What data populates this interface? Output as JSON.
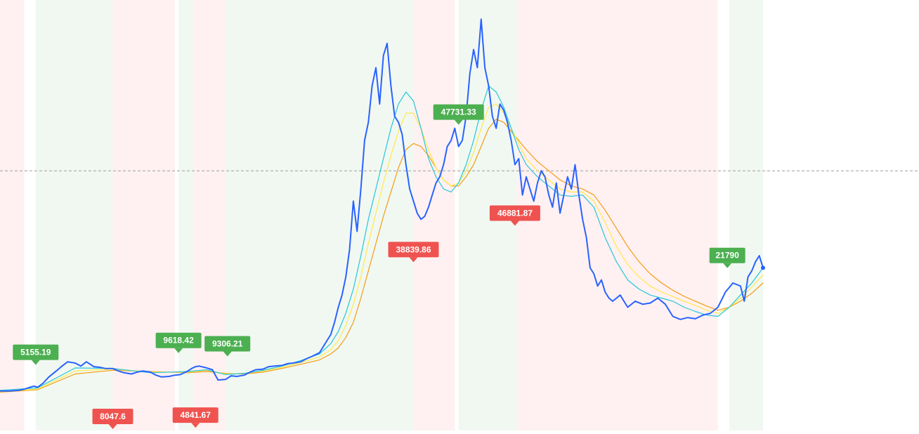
{
  "chart_data": {
    "type": "line",
    "title": "",
    "xlabel": "",
    "ylabel": "",
    "ylim": [
      2000,
      68000
    ],
    "xlim": [
      0,
      420
    ],
    "grid": false,
    "reference_line_value": 41000,
    "colors": {
      "price": "#2962ff",
      "ma_fast": "#26c6da",
      "ma_mid": "#ffe94a",
      "ma_slow": "#f39c12",
      "buy": "#4caf50",
      "sell": "#ef5350",
      "bg_buy": "#f1f8f2",
      "bg_sell": "#fff1f1",
      "reference_line": "#9e9e9e"
    },
    "regimes": [
      {
        "signal": "sell",
        "from": 0,
        "to": 13
      },
      {
        "signal": "buy",
        "from": 19,
        "to": 60
      },
      {
        "signal": "sell",
        "from": 60,
        "to": 93
      },
      {
        "signal": "buy",
        "from": 95,
        "to": 103
      },
      {
        "signal": "sell",
        "from": 103,
        "to": 120
      },
      {
        "signal": "buy",
        "from": 120,
        "to": 220
      },
      {
        "signal": "sell",
        "from": 220,
        "to": 242
      },
      {
        "signal": "buy",
        "from": 244,
        "to": 275
      },
      {
        "signal": "sell",
        "from": 275,
        "to": 382
      },
      {
        "signal": "buy",
        "from": 388,
        "to": 406
      }
    ],
    "series": [
      {
        "key": "price",
        "x": [
          0,
          5,
          10,
          13,
          16,
          18,
          20,
          23,
          26,
          30,
          33,
          36,
          40,
          43,
          46,
          50,
          53,
          56,
          60,
          63,
          66,
          70,
          73,
          76,
          80,
          83,
          86,
          90,
          93,
          96,
          100,
          102,
          104,
          106,
          110,
          113,
          116,
          120,
          123,
          126,
          130,
          133,
          136,
          140,
          143,
          146,
          150,
          153,
          156,
          160,
          163,
          166,
          170,
          172,
          174,
          176,
          178,
          180,
          182,
          184,
          186,
          188,
          190,
          192,
          194,
          196,
          198,
          200,
          202,
          204,
          206,
          208,
          210,
          212,
          214,
          216,
          218,
          220,
          222,
          224,
          226,
          228,
          230,
          232,
          234,
          236,
          238,
          240,
          242,
          244,
          246,
          248,
          250,
          252,
          254,
          256,
          258,
          260,
          262,
          264,
          266,
          268,
          270,
          272,
          274,
          276,
          278,
          280,
          282,
          284,
          286,
          288,
          290,
          292,
          294,
          296,
          298,
          300,
          302,
          304,
          306,
          308,
          310,
          312,
          314,
          316,
          318,
          320,
          322,
          324,
          326,
          328,
          330,
          334,
          338,
          342,
          346,
          350,
          354,
          358,
          362,
          366,
          370,
          374,
          378,
          382,
          386,
          390,
          394,
          396,
          398,
          400,
          402,
          404,
          406
        ],
        "y": [
          4700,
          4700,
          4800,
          5000,
          5300,
          5500,
          5300,
          6000,
          7000,
          8000,
          8800,
          9500,
          9300,
          8800,
          9500,
          8700,
          8600,
          8400,
          8400,
          8000,
          7700,
          7500,
          7800,
          8000,
          7800,
          7300,
          7000,
          7100,
          7300,
          7400,
          8000,
          8400,
          8700,
          8800,
          8500,
          8200,
          6500,
          6600,
          7200,
          7100,
          7300,
          7800,
          8200,
          8300,
          8700,
          8800,
          8900,
          9200,
          9300,
          9500,
          10000,
          10400,
          11000,
          12000,
          13000,
          14000,
          16000,
          18500,
          20500,
          23500,
          28000,
          36000,
          31000,
          38000,
          46000,
          49000,
          55000,
          58000,
          52000,
          60000,
          62000,
          55000,
          50000,
          49000,
          47000,
          42000,
          38000,
          36000,
          34000,
          33000,
          33500,
          35000,
          37000,
          39000,
          40000,
          42000,
          45000,
          46000,
          48000,
          45000,
          46000,
          50000,
          57000,
          61000,
          58000,
          66000,
          58000,
          55000,
          50000,
          48000,
          52000,
          51000,
          49000,
          46000,
          42000,
          43000,
          37000,
          40000,
          38000,
          36000,
          39000,
          41000,
          40000,
          37000,
          35000,
          39000,
          34000,
          37000,
          40000,
          38000,
          42000,
          37000,
          33000,
          30000,
          25000,
          24000,
          22000,
          23000,
          21000,
          20000,
          19500,
          20000,
          20500,
          18500,
          19500,
          19000,
          19200,
          20000,
          19000,
          17000,
          16500,
          16800,
          16600,
          17200,
          17500,
          18500,
          21000,
          22500,
          22000,
          19500,
          23500,
          24500,
          26000,
          27000,
          25000
        ]
      },
      {
        "key": "ma_fast",
        "x": [
          0,
          20,
          40,
          60,
          80,
          100,
          110,
          120,
          130,
          140,
          150,
          160,
          170,
          176,
          180,
          184,
          188,
          192,
          196,
          200,
          204,
          208,
          212,
          216,
          220,
          224,
          228,
          232,
          236,
          240,
          244,
          248,
          252,
          256,
          260,
          264,
          268,
          272,
          276,
          280,
          286,
          292,
          298,
          304,
          310,
          316,
          322,
          328,
          334,
          340,
          346,
          352,
          358,
          364,
          370,
          376,
          382,
          388,
          394,
          400,
          406
        ],
        "y": [
          4800,
          5200,
          8500,
          8400,
          7700,
          7900,
          8200,
          7400,
          7600,
          8100,
          8800,
          9700,
          10800,
          12500,
          14500,
          17500,
          21500,
          27000,
          33000,
          38000,
          43000,
          48000,
          52000,
          54000,
          52500,
          48000,
          43000,
          40000,
          38000,
          37500,
          39000,
          42000,
          46000,
          51000,
          55000,
          54000,
          51500,
          48000,
          44500,
          42000,
          40000,
          38500,
          37000,
          36800,
          37000,
          35000,
          30000,
          26000,
          23000,
          21500,
          20500,
          20000,
          19500,
          18500,
          17800,
          17200,
          17000,
          18500,
          20500,
          22500,
          25000
        ]
      },
      {
        "key": "ma_mid",
        "x": [
          0,
          20,
          40,
          60,
          80,
          100,
          110,
          120,
          130,
          140,
          150,
          160,
          170,
          176,
          180,
          184,
          188,
          192,
          196,
          200,
          204,
          208,
          212,
          216,
          220,
          224,
          228,
          232,
          236,
          240,
          244,
          248,
          252,
          256,
          260,
          264,
          268,
          272,
          276,
          280,
          286,
          292,
          298,
          304,
          310,
          316,
          322,
          328,
          334,
          340,
          346,
          352,
          358,
          364,
          370,
          376,
          382,
          388,
          394,
          400,
          406
        ],
        "y": [
          4600,
          5000,
          8000,
          8300,
          7800,
          7800,
          8100,
          7500,
          7600,
          8000,
          8600,
          9400,
          10300,
          11500,
          13000,
          15500,
          19000,
          23500,
          29000,
          34000,
          39000,
          43500,
          47500,
          50500,
          50500,
          48000,
          44500,
          41500,
          39500,
          38500,
          39000,
          41000,
          44000,
          48000,
          51500,
          52000,
          50500,
          48000,
          45500,
          43000,
          41000,
          39500,
          38000,
          37500,
          37500,
          36000,
          32500,
          28500,
          25500,
          23500,
          22000,
          21000,
          20300,
          19500,
          18800,
          18000,
          17500,
          18500,
          20000,
          21800,
          23800
        ]
      },
      {
        "key": "ma_slow",
        "x": [
          0,
          20,
          40,
          60,
          80,
          100,
          110,
          120,
          130,
          140,
          150,
          160,
          170,
          176,
          180,
          184,
          188,
          192,
          196,
          200,
          204,
          208,
          212,
          216,
          220,
          224,
          228,
          232,
          236,
          240,
          244,
          248,
          252,
          256,
          260,
          264,
          268,
          272,
          276,
          280,
          286,
          292,
          298,
          304,
          310,
          316,
          322,
          328,
          334,
          340,
          346,
          352,
          358,
          364,
          370,
          376,
          382,
          388,
          394,
          400,
          406
        ],
        "y": [
          4500,
          4900,
          7500,
          8100,
          7900,
          7700,
          7900,
          7600,
          7500,
          7800,
          8400,
          9100,
          9800,
          10800,
          11800,
          13500,
          16000,
          20000,
          24500,
          29000,
          33500,
          37500,
          41500,
          44500,
          45500,
          45000,
          43500,
          41500,
          39500,
          38500,
          38500,
          40000,
          42000,
          45000,
          48000,
          49500,
          49000,
          47500,
          46000,
          44500,
          42500,
          41000,
          39500,
          38500,
          38000,
          37000,
          34500,
          31500,
          28500,
          26000,
          24000,
          22500,
          21300,
          20300,
          19500,
          18700,
          18000,
          18500,
          19500,
          20800,
          22500
        ]
      }
    ],
    "annotations": [
      {
        "signal": "buy",
        "label": "5155.19",
        "x": 19,
        "value": 5155.19
      },
      {
        "signal": "sell",
        "label": "8047.6",
        "x": 60,
        "value": 8047.6
      },
      {
        "signal": "buy",
        "label": "9618.42",
        "x": 95,
        "value": 9618.42
      },
      {
        "signal": "sell",
        "label": "4841.67",
        "x": 104,
        "value": 4841.67
      },
      {
        "signal": "buy",
        "label": "9306.21",
        "x": 121,
        "value": 9306.21
      },
      {
        "signal": "sell",
        "label": "38839.86",
        "x": 220,
        "value": 38839.86
      },
      {
        "signal": "buy",
        "label": "47731.33",
        "x": 244,
        "value": 47731.33
      },
      {
        "signal": "sell",
        "label": "46881.87",
        "x": 274,
        "value": 46881.87
      },
      {
        "signal": "buy",
        "label": "21790",
        "x": 387,
        "value": 21790
      }
    ]
  }
}
